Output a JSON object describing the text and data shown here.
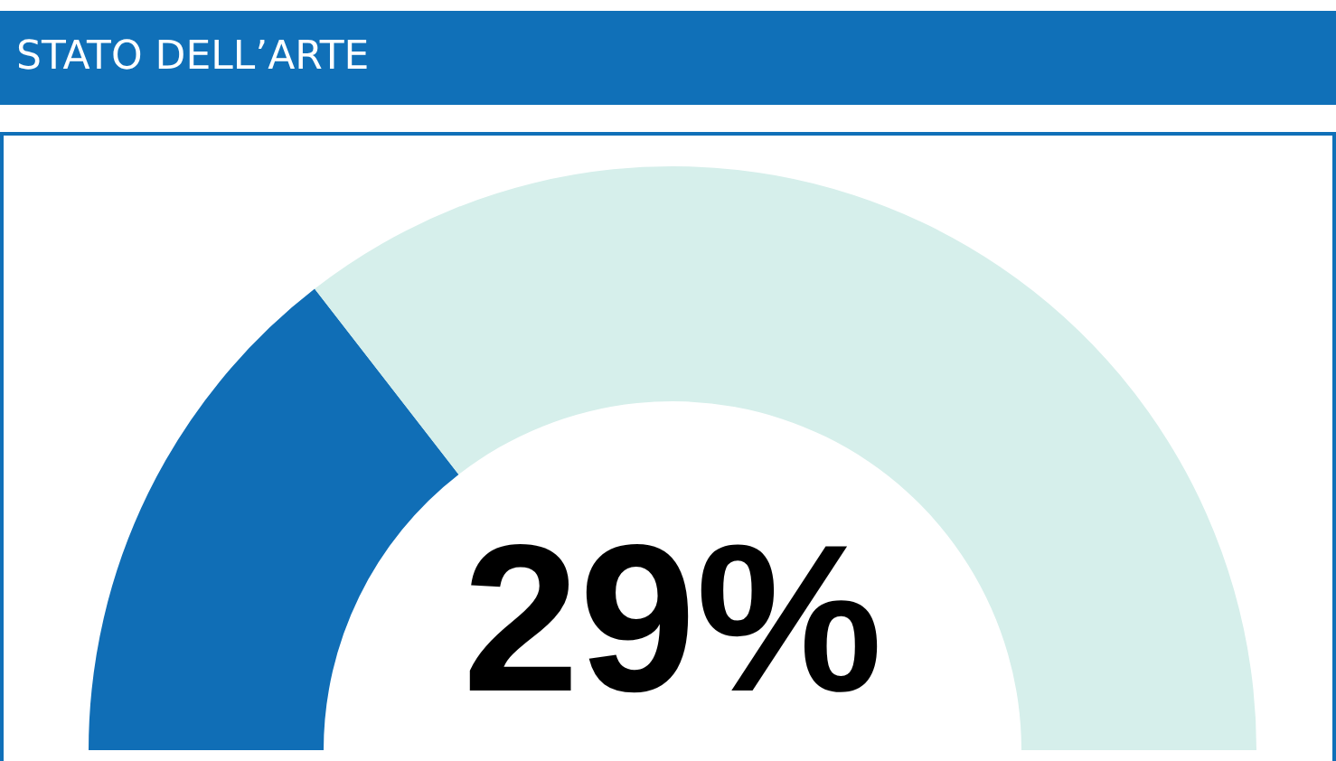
{
  "chart_data": {
    "type": "donut",
    "title": "STATO DELL’ARTE",
    "categories": [
      null,
      null
    ],
    "values": [
      29,
      71
    ],
    "colors": [
      "#106eb6",
      "#d6efeb"
    ],
    "annotations": [
      "29%"
    ]
  }
}
